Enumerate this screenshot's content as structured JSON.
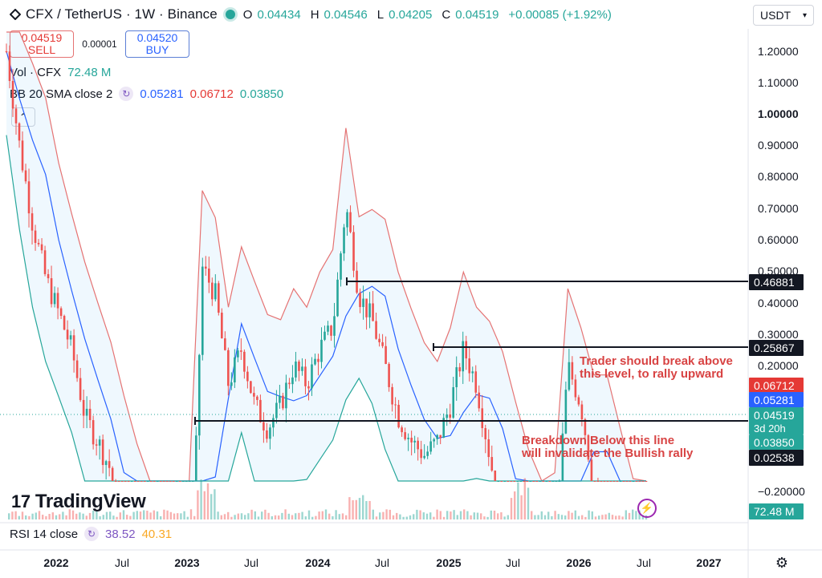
{
  "header": {
    "title": "CFX / TetherUS · 1W · Binance",
    "ohlc": [
      {
        "key": "O",
        "value": "0.04434"
      },
      {
        "key": "H",
        "value": "0.04546"
      },
      {
        "key": "L",
        "value": "0.04205"
      },
      {
        "key": "C",
        "value": "0.04519"
      }
    ],
    "change": "+0.00085 (+1.92%)",
    "currency": "USDT"
  },
  "trade": {
    "sell_price": "0.04519",
    "sell_label": "SELL",
    "spread": "0.00001",
    "buy_price": "0.04520",
    "buy_label": "BUY"
  },
  "indicators": {
    "vol_label": "Vol · CFX",
    "vol_value": "72.48 M",
    "bb_label": "BB 20 SMA close 2",
    "bb_basis": "0.05281",
    "bb_upper": "0.06712",
    "bb_lower": "0.03850",
    "rsi_label": "RSI 14 close",
    "rsi_value": "38.52",
    "rsi_ma": "40.31"
  },
  "chart_data": {
    "type": "line",
    "y_scale": "log",
    "y_tick_labels": [
      "1.20000",
      "1.10000",
      "1.00000",
      "0.90000",
      "0.80000",
      "0.70000",
      "0.60000",
      "0.50000",
      "0.40000",
      "0.30000",
      "0.20000",
      "−0.20000"
    ],
    "x_tick_labels": [
      "2022",
      "Jul",
      "2023",
      "Jul",
      "2024",
      "Jul",
      "2025",
      "Jul",
      "2026",
      "Jul",
      "2027"
    ],
    "horizontal_levels": [
      {
        "label": "0.46881",
        "value": 0.46881,
        "color": "#131722"
      },
      {
        "label": "0.25867",
        "value": 0.25867,
        "color": "#131722"
      },
      {
        "label": "0.02538",
        "value": 0.02538,
        "color": "#131722"
      }
    ],
    "price_badges": [
      {
        "label": "0.06712",
        "color": "#e53935"
      },
      {
        "label": "0.05281",
        "color": "#2962ff"
      },
      {
        "label": "0.04519",
        "sub": "3d 20h",
        "color": "#26a69a"
      },
      {
        "label": "0.03850",
        "color": "#26a69a"
      },
      {
        "label": "72.48 M",
        "color": "#26a69a"
      }
    ],
    "annotations": [
      "Trader should break above\nthis level, to rally upward",
      "Breakdown Below this line\nwill invalidate the Bullish rally"
    ],
    "series": [
      {
        "name": "",
        "approx_close": [
          1.2,
          0.7,
          0.45,
          0.33,
          0.27,
          0.22,
          0.15,
          0.13,
          0.11,
          0.065,
          0.05,
          0.045,
          0.042,
          0.03,
          0.04,
          0.35,
          0.3,
          0.18,
          0.22,
          0.16,
          0.14,
          0.16,
          0.2,
          0.18,
          0.22,
          0.25,
          0.5,
          0.3,
          0.26,
          0.2,
          0.15,
          0.13,
          0.12,
          0.13,
          0.16,
          0.22,
          0.18,
          0.12,
          0.08,
          0.07,
          0.06,
          0.05,
          0.07,
          0.2,
          0.16,
          0.1,
          0.07,
          0.06,
          0.05,
          0.045
        ]
      }
    ]
  },
  "branding": {
    "name": "TradingView"
  }
}
